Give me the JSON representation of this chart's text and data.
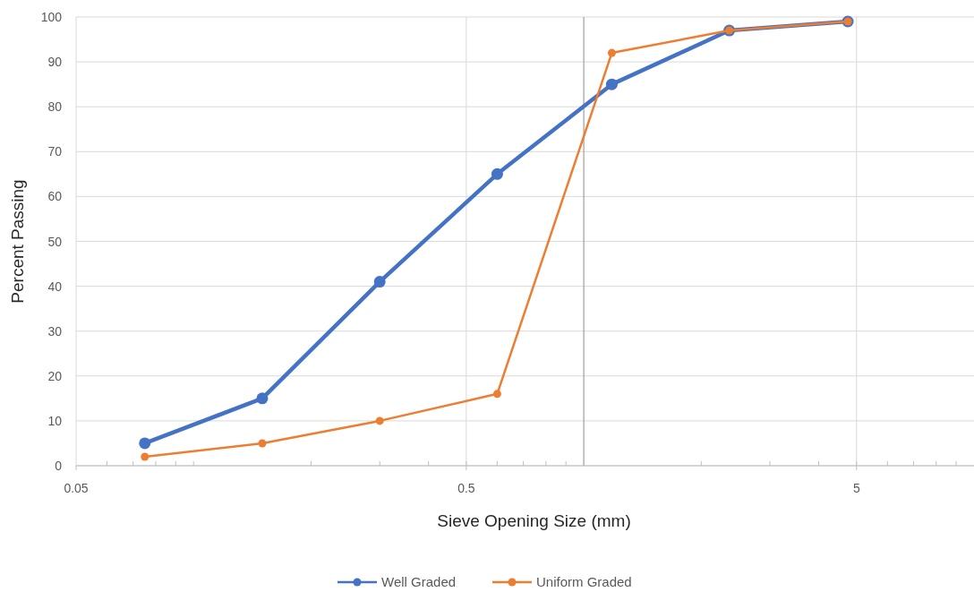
{
  "chart_data": {
    "type": "line",
    "xlabel": "Sieve Opening Size (mm)",
    "ylabel": "Percent Passing",
    "x": [
      0.075,
      0.15,
      0.3,
      0.6,
      1.18,
      2.36,
      4.75
    ],
    "series": [
      {
        "name": "Well Graded",
        "color": "#4472c4",
        "values": [
          5,
          15,
          41,
          65,
          85,
          97,
          99
        ]
      },
      {
        "name": "Uniform Graded",
        "color": "#ed7d31",
        "values": [
          2,
          5,
          10,
          16,
          92,
          97,
          99
        ]
      }
    ],
    "log": "x",
    "xlim": [
      0.05,
      10
    ],
    "xticks": [
      0.05,
      0.5,
      5
    ],
    "ylim": [
      0,
      100
    ],
    "yticks": [
      0,
      10,
      20,
      30,
      40,
      50,
      60,
      70,
      80,
      90,
      100
    ],
    "ref_lines": [
      {
        "axis": "x",
        "value": 1,
        "color": "#a6a6a6"
      }
    ],
    "grid": true,
    "legend": "bottom",
    "marker": "circle",
    "line_style": "solid"
  }
}
